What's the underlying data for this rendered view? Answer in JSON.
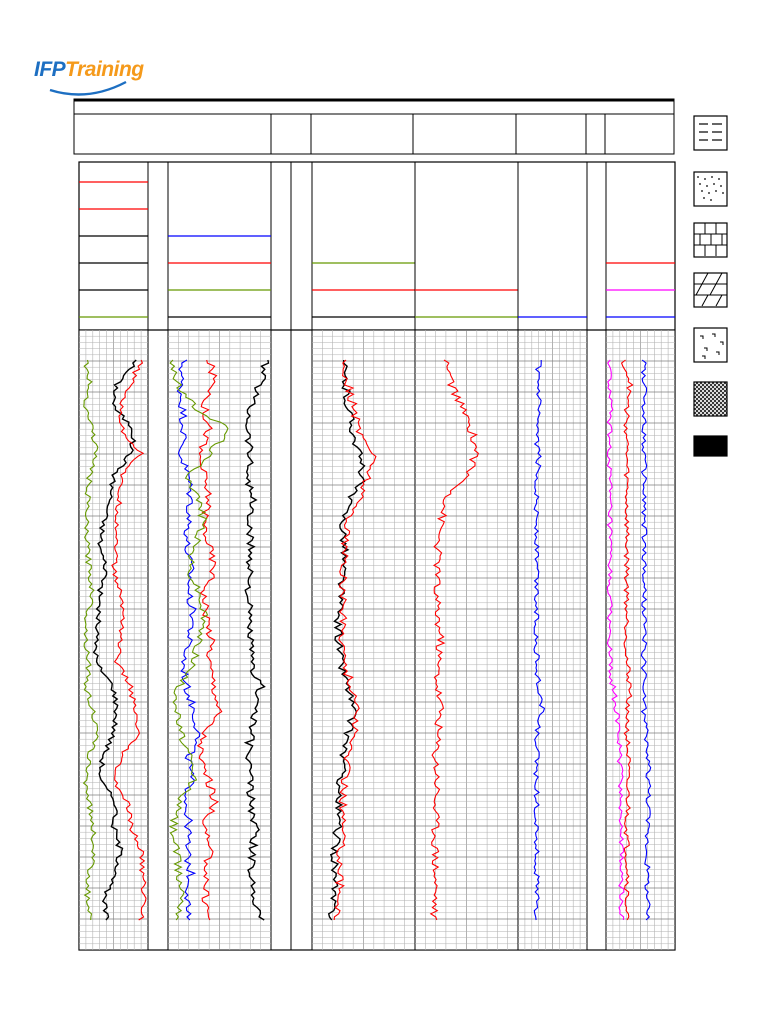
{
  "logo": {
    "brand_prefix": "IFP",
    "brand_suffix": "Training",
    "prefix_color": "#1d6fc2",
    "suffix_color": "#f59a1b"
  },
  "colors": {
    "red": "#ff0000",
    "blue": "#0000ff",
    "black": "#000000",
    "green": "#669900",
    "magenta": "#ff00ff",
    "grid_minor": "#b3b3b3",
    "grid_major": "#7f7f7f",
    "panel_fill": "#e6e6e6"
  },
  "lithology_legend": [
    {
      "icon": "shale-pattern-icon"
    },
    {
      "icon": "sandstone-pattern-icon"
    },
    {
      "icon": "limestone-pattern-icon"
    },
    {
      "icon": "dolomite-pattern-icon"
    },
    {
      "icon": "evaporite-pattern-icon"
    },
    {
      "icon": "igneous-crosshatch-pattern-icon"
    },
    {
      "icon": "coal-pattern-icon"
    }
  ],
  "chart_data": {
    "type": "line",
    "tracks": [
      {
        "name": "track-1",
        "header_curves": [
          "red",
          "red",
          "black",
          "black",
          "black",
          "green"
        ],
        "series": [
          {
            "color": "black",
            "profile": [
              0.85,
              0.55,
              0.5,
              0.8,
              0.75,
              0.5,
              0.45,
              0.35,
              0.3,
              0.4,
              0.3,
              0.28,
              0.25,
              0.25,
              0.5,
              0.55,
              0.5,
              0.35,
              0.3,
              0.55,
              0.5,
              0.6,
              0.55,
              0.35,
              0.4
            ]
          },
          {
            "color": "red",
            "profile": [
              0.9,
              0.75,
              0.6,
              0.62,
              0.9,
              0.6,
              0.58,
              0.55,
              0.55,
              0.5,
              0.6,
              0.65,
              0.6,
              0.55,
              0.75,
              0.8,
              0.85,
              0.6,
              0.5,
              0.7,
              0.75,
              0.9,
              0.92,
              0.95,
              0.9
            ]
          },
          {
            "color": "green",
            "profile": [
              0.1,
              0.15,
              0.1,
              0.2,
              0.25,
              0.15,
              0.12,
              0.1,
              0.12,
              0.15,
              0.2,
              0.12,
              0.1,
              0.15,
              0.1,
              0.2,
              0.25,
              0.15,
              0.1,
              0.15,
              0.2,
              0.22,
              0.15,
              0.12,
              0.15
            ]
          }
        ]
      },
      {
        "name": "track-2",
        "header_curves": [
          "blue",
          "red",
          "green",
          "black"
        ],
        "series": [
          {
            "color": "blue",
            "profile": [
              0.15,
              0.12,
              0.14,
              0.16,
              0.12,
              0.2,
              0.22,
              0.2,
              0.18,
              0.22,
              0.2,
              0.25,
              0.2,
              0.15,
              0.18,
              0.25,
              0.3,
              0.2,
              0.22,
              0.18,
              0.2,
              0.18,
              0.22,
              0.2,
              0.18
            ]
          },
          {
            "color": "red",
            "profile": [
              0.4,
              0.45,
              0.35,
              0.4,
              0.3,
              0.35,
              0.4,
              0.35,
              0.4,
              0.45,
              0.35,
              0.38,
              0.42,
              0.4,
              0.45,
              0.5,
              0.35,
              0.3,
              0.4,
              0.45,
              0.35,
              0.4,
              0.38,
              0.36,
              0.4
            ]
          },
          {
            "color": "green",
            "profile": [
              0.05,
              0.08,
              0.25,
              0.6,
              0.4,
              0.2,
              0.3,
              0.35,
              0.25,
              0.2,
              0.3,
              0.35,
              0.3,
              0.25,
              0.1,
              0.08,
              0.12,
              0.2,
              0.25,
              0.1,
              0.05,
              0.08,
              0.1,
              0.15,
              0.1
            ]
          },
          {
            "color": "black",
            "profile": [
              0.95,
              0.9,
              0.8,
              0.78,
              0.8,
              0.78,
              0.82,
              0.78,
              0.8,
              0.8,
              0.78,
              0.78,
              0.8,
              0.8,
              0.9,
              0.85,
              0.8,
              0.78,
              0.8,
              0.8,
              0.85,
              0.82,
              0.8,
              0.85,
              0.9
            ]
          }
        ]
      },
      {
        "name": "track-3",
        "header_curves": [
          "green",
          "red",
          "black"
        ],
        "series": [
          {
            "color": "black",
            "profile": [
              0.3,
              0.32,
              0.35,
              0.4,
              0.45,
              0.5,
              0.35,
              0.3,
              0.32,
              0.3,
              0.28,
              0.25,
              0.26,
              0.28,
              0.35,
              0.4,
              0.35,
              0.3,
              0.28,
              0.25,
              0.25,
              0.22,
              0.22,
              0.2,
              0.2
            ]
          },
          {
            "color": "red",
            "profile": [
              0.3,
              0.35,
              0.4,
              0.45,
              0.6,
              0.55,
              0.45,
              0.35,
              0.32,
              0.3,
              0.3,
              0.3,
              0.3,
              0.32,
              0.38,
              0.45,
              0.4,
              0.35,
              0.32,
              0.3,
              0.3,
              0.28,
              0.28,
              0.26,
              0.25
            ]
          }
        ]
      },
      {
        "name": "track-4",
        "header_curves": [
          "red",
          "green"
        ],
        "series": [
          {
            "color": "red",
            "profile": [
              0.3,
              0.35,
              0.45,
              0.55,
              0.6,
              0.5,
              0.3,
              0.25,
              0.22,
              0.22,
              0.2,
              0.22,
              0.25,
              0.22,
              0.22,
              0.25,
              0.22,
              0.2,
              0.22,
              0.2,
              0.2,
              0.2,
              0.2,
              0.2,
              0.18
            ]
          }
        ]
      },
      {
        "name": "track-5",
        "header_curves": [
          "blue"
        ],
        "series": [
          {
            "color": "blue",
            "profile": [
              0.3,
              0.28,
              0.3,
              0.25,
              0.3,
              0.28,
              0.27,
              0.27,
              0.27,
              0.27,
              0.27,
              0.27,
              0.27,
              0.27,
              0.3,
              0.35,
              0.27,
              0.27,
              0.27,
              0.27,
              0.27,
              0.27,
              0.27,
              0.27,
              0.27
            ]
          }
        ]
      },
      {
        "name": "track-6",
        "header_curves": [
          "red",
          "magenta",
          "blue"
        ],
        "series": [
          {
            "color": "magenta",
            "profile": [
              0.05,
              0.05,
              0.06,
              0.05,
              0.05,
              0.05,
              0.05,
              0.05,
              0.05,
              0.05,
              0.05,
              0.05,
              0.05,
              0.05,
              0.1,
              0.15,
              0.18,
              0.2,
              0.22,
              0.22,
              0.22,
              0.22,
              0.22,
              0.22,
              0.22
            ]
          },
          {
            "color": "red",
            "profile": [
              0.25,
              0.35,
              0.3,
              0.3,
              0.3,
              0.3,
              0.3,
              0.3,
              0.3,
              0.3,
              0.3,
              0.3,
              0.3,
              0.3,
              0.35,
              0.32,
              0.3,
              0.32,
              0.3,
              0.32,
              0.3,
              0.3,
              0.32,
              0.3,
              0.3
            ]
          },
          {
            "color": "blue",
            "profile": [
              0.55,
              0.55,
              0.56,
              0.55,
              0.55,
              0.55,
              0.55,
              0.55,
              0.55,
              0.55,
              0.55,
              0.55,
              0.55,
              0.55,
              0.55,
              0.55,
              0.58,
              0.6,
              0.62,
              0.62,
              0.6,
              0.6,
              0.6,
              0.6,
              0.6
            ]
          }
        ]
      }
    ]
  }
}
